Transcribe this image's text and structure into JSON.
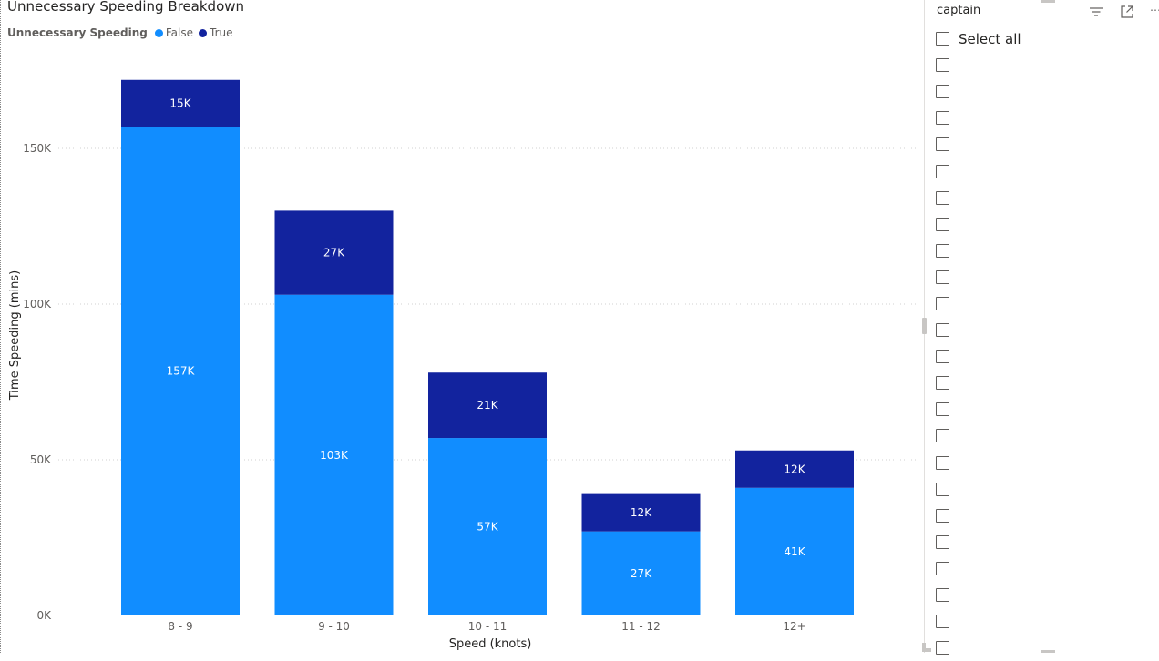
{
  "visual": {
    "title": "Unnecessary Speeding Breakdown",
    "legend_title": "Unnecessary Speeding",
    "legend": [
      {
        "label": "False",
        "color": "#118DFF"
      },
      {
        "label": "True",
        "color": "#12239E"
      }
    ]
  },
  "chart_data": {
    "type": "bar",
    "stacked": true,
    "categories": [
      "8 - 9",
      "9 - 10",
      "10 - 11",
      "11 - 12",
      "12+"
    ],
    "series": [
      {
        "name": "False",
        "color": "#118DFF",
        "values": [
          157000,
          103000,
          57000,
          27000,
          41000
        ],
        "labels": [
          "157K",
          "103K",
          "57K",
          "27K",
          "41K"
        ]
      },
      {
        "name": "True",
        "color": "#12239E",
        "values": [
          15000,
          27000,
          21000,
          12000,
          12000
        ],
        "labels": [
          "15K",
          "27K",
          "21K",
          "12K",
          "12K"
        ]
      }
    ],
    "xlabel": "Speed (knots)",
    "ylabel": "Time Speeding (mins)",
    "ylim": [
      0,
      175000
    ],
    "yticks": [
      0,
      50000,
      100000,
      150000
    ],
    "ytick_labels": [
      "0K",
      "50K",
      "100K",
      "150K"
    ],
    "grid": true,
    "legend_position": "top-left"
  },
  "slicer": {
    "title": "captain",
    "select_all_label": "Select all",
    "unlabeled_item_count": 23,
    "icons": [
      "filter-icon",
      "focus-mode-icon",
      "more-options-icon"
    ]
  }
}
